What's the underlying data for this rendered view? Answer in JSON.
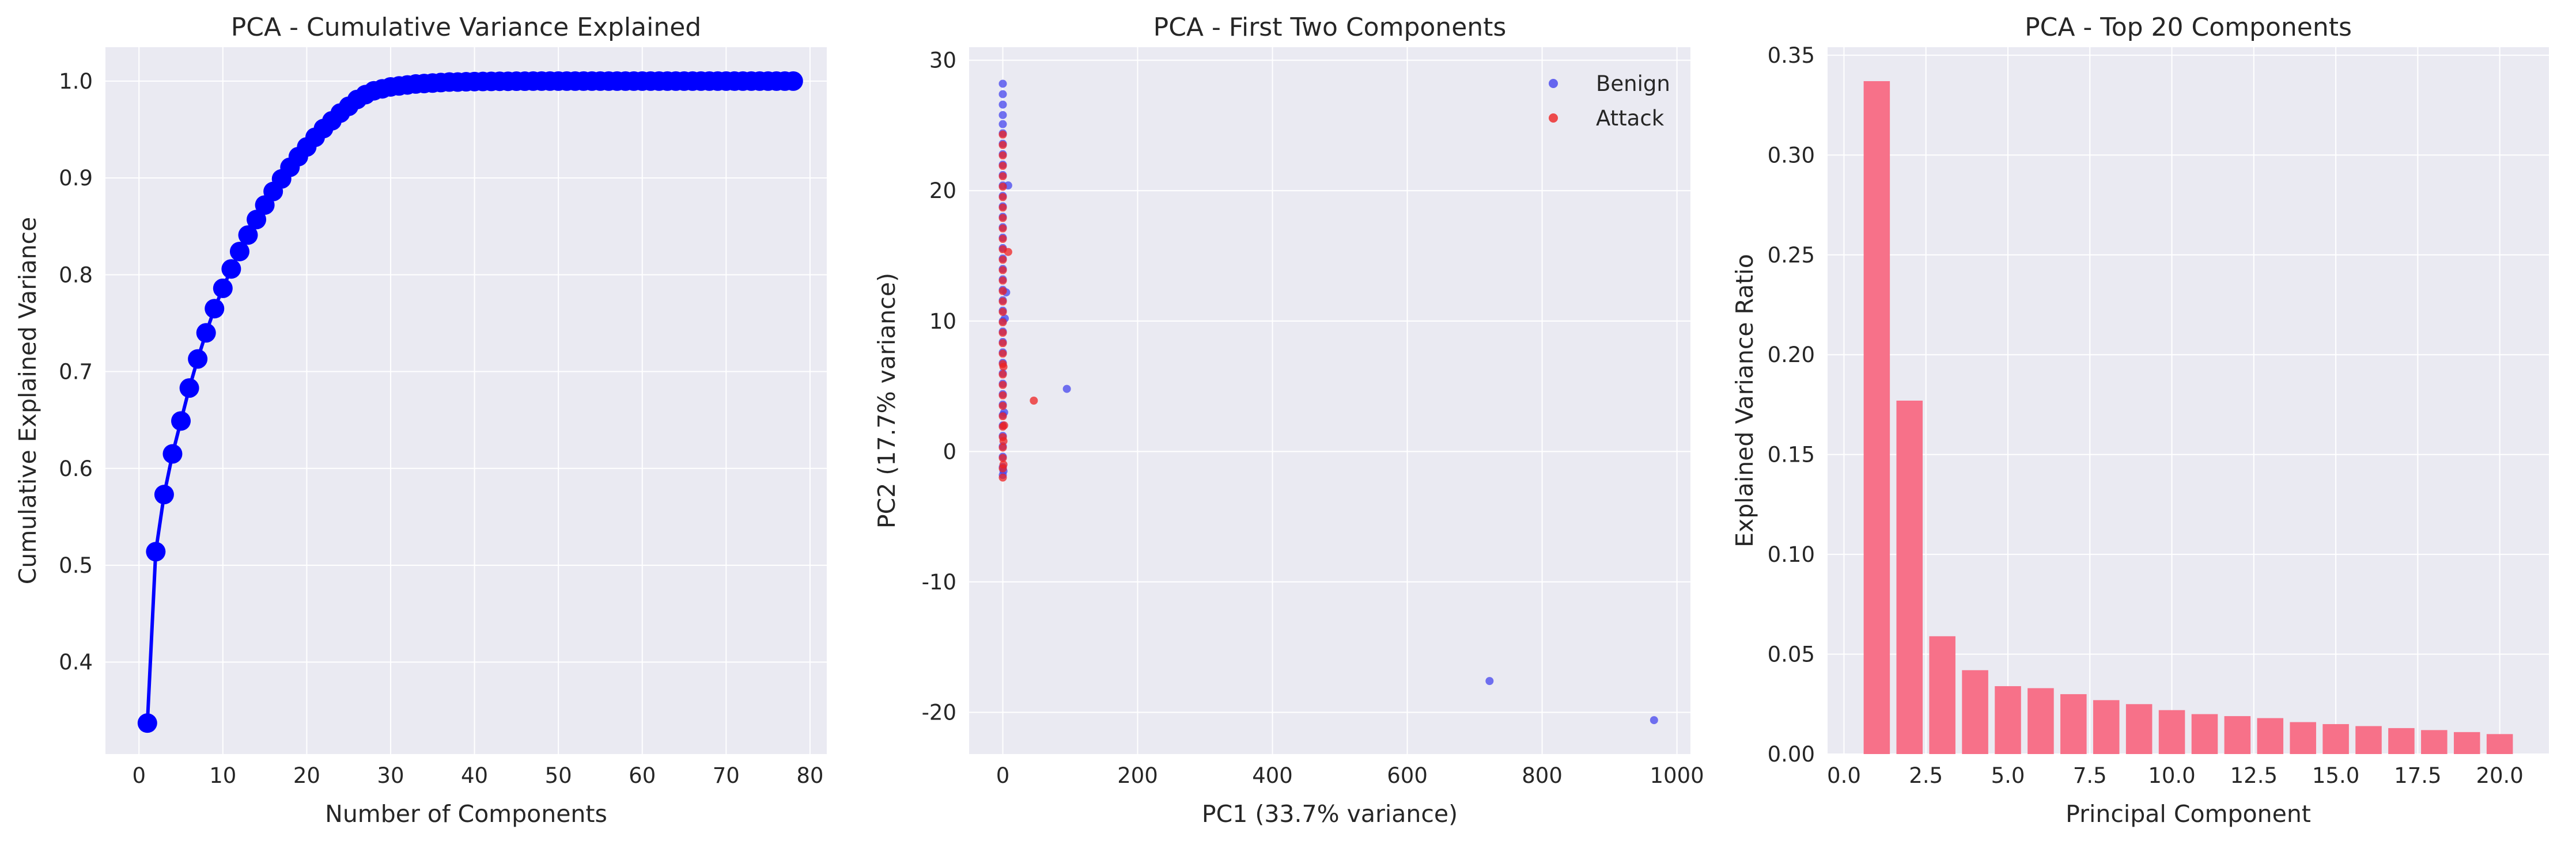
{
  "chart_data": [
    {
      "type": "line",
      "title": "PCA - Cumulative Variance Explained",
      "xlabel": "Number of Components",
      "ylabel": "Cumulative Explained Variance",
      "xlim": [
        -4,
        82
      ],
      "ylim": [
        0.305,
        1.035
      ],
      "xticks": [
        0,
        10,
        20,
        30,
        40,
        50,
        60,
        70,
        80
      ],
      "yticks": [
        0.4,
        0.5,
        0.6,
        0.7,
        0.8,
        0.9,
        1.0
      ],
      "ytick_labels": [
        "0.4",
        "0.5",
        "0.6",
        "0.7",
        "0.8",
        "0.9",
        "1.0"
      ],
      "grid": true,
      "color": "#0000FF",
      "x": [
        1,
        2,
        3,
        4,
        5,
        6,
        7,
        8,
        9,
        10,
        11,
        12,
        13,
        14,
        15,
        16,
        17,
        18,
        19,
        20,
        21,
        22,
        23,
        24,
        25,
        26,
        27,
        28,
        29,
        30,
        31,
        32,
        33,
        34,
        35,
        36,
        37,
        38,
        39,
        40,
        41,
        42,
        43,
        44,
        45,
        46,
        47,
        48,
        49,
        50,
        51,
        52,
        53,
        54,
        55,
        56,
        57,
        58,
        59,
        60,
        61,
        62,
        63,
        64,
        65,
        66,
        67,
        68,
        69,
        70,
        71,
        72,
        73,
        74,
        75,
        76,
        77,
        78
      ],
      "y": [
        0.337,
        0.514,
        0.573,
        0.615,
        0.649,
        0.683,
        0.713,
        0.74,
        0.765,
        0.786,
        0.806,
        0.824,
        0.841,
        0.857,
        0.872,
        0.886,
        0.899,
        0.911,
        0.922,
        0.932,
        0.942,
        0.951,
        0.959,
        0.967,
        0.974,
        0.981,
        0.986,
        0.99,
        0.992,
        0.994,
        0.995,
        0.996,
        0.997,
        0.9975,
        0.998,
        0.9985,
        0.999,
        0.999,
        0.9993,
        0.9995,
        0.9996,
        0.9997,
        0.9998,
        0.9998,
        0.9999,
        0.9999,
        1.0,
        1.0,
        1.0,
        1.0,
        1.0,
        1.0,
        1.0,
        1.0,
        1.0,
        1.0,
        1.0,
        1.0,
        1.0,
        1.0,
        1.0,
        1.0,
        1.0,
        1.0,
        1.0,
        1.0,
        1.0,
        1.0,
        1.0,
        1.0,
        1.0,
        1.0,
        1.0,
        1.0,
        1.0,
        1.0,
        1.0,
        1.0
      ]
    },
    {
      "type": "scatter",
      "title": "PCA - First Two Components",
      "xlabel": "PC1 (33.7% variance)",
      "ylabel": "PC2 (17.7% variance)",
      "xlim": [
        -50,
        1020
      ],
      "ylim": [
        -23.2,
        31
      ],
      "xticks": [
        0,
        200,
        400,
        600,
        800,
        1000
      ],
      "yticks": [
        -20,
        -10,
        0,
        10,
        20,
        30
      ],
      "grid": true,
      "legend": "top-right",
      "series": [
        {
          "name": "Benign",
          "color": "#4444EE",
          "points": [
            [
              0,
              28.2
            ],
            [
              0,
              27.4
            ],
            [
              0,
              26.6
            ],
            [
              0,
              25.8
            ],
            [
              0,
              25.1
            ],
            [
              0,
              24.4
            ],
            [
              0,
              23.6
            ],
            [
              0,
              22.8
            ],
            [
              0,
              22.0
            ],
            [
              0,
              21.2
            ],
            [
              0,
              20.4
            ],
            [
              0,
              19.6
            ],
            [
              0,
              18.8
            ],
            [
              0,
              18.0
            ],
            [
              0,
              17.2
            ],
            [
              0,
              16.4
            ],
            [
              0,
              15.6
            ],
            [
              0,
              14.8
            ],
            [
              0,
              14.0
            ],
            [
              0,
              13.2
            ],
            [
              0,
              12.4
            ],
            [
              0,
              11.6
            ],
            [
              0,
              10.8
            ],
            [
              0,
              10.0
            ],
            [
              0,
              9.2
            ],
            [
              0,
              8.4
            ],
            [
              0,
              7.6
            ],
            [
              0,
              6.8
            ],
            [
              0,
              6.0
            ],
            [
              0,
              5.2
            ],
            [
              0,
              4.4
            ],
            [
              0,
              3.6
            ],
            [
              0,
              2.8
            ],
            [
              0,
              2.0
            ],
            [
              0,
              1.2
            ],
            [
              0,
              0.4
            ],
            [
              0,
              -0.4
            ],
            [
              0,
              -1.2
            ],
            [
              0,
              -1.8
            ],
            [
              1,
              -1.5
            ],
            [
              2,
              3.0
            ],
            [
              3,
              10.2
            ],
            [
              5,
              12.2
            ],
            [
              8,
              20.4
            ],
            [
              95,
              4.8
            ],
            [
              722,
              -17.6
            ],
            [
              966,
              -20.6
            ]
          ]
        },
        {
          "name": "Attack",
          "color": "#EE2222",
          "points": [
            [
              0,
              24.3
            ],
            [
              0,
              23.5
            ],
            [
              0,
              22.7
            ],
            [
              0,
              21.9
            ],
            [
              0,
              21.1
            ],
            [
              0,
              20.3
            ],
            [
              0,
              19.5
            ],
            [
              0,
              18.7
            ],
            [
              0,
              17.9
            ],
            [
              0,
              17.1
            ],
            [
              0,
              16.3
            ],
            [
              0,
              15.5
            ],
            [
              0,
              14.7
            ],
            [
              0,
              13.9
            ],
            [
              0,
              13.1
            ],
            [
              0,
              12.3
            ],
            [
              0,
              11.5
            ],
            [
              0,
              10.7
            ],
            [
              0,
              9.9
            ],
            [
              0,
              9.1
            ],
            [
              0,
              8.3
            ],
            [
              0,
              7.5
            ],
            [
              0,
              6.7
            ],
            [
              0,
              5.9
            ],
            [
              0,
              5.1
            ],
            [
              0,
              4.3
            ],
            [
              0,
              3.5
            ],
            [
              0,
              2.7
            ],
            [
              0,
              1.9
            ],
            [
              0,
              1.1
            ],
            [
              0,
              0.3
            ],
            [
              0,
              -0.5
            ],
            [
              0,
              -1.3
            ],
            [
              0,
              -2.0
            ],
            [
              1,
              -1.0
            ],
            [
              1,
              0.8
            ],
            [
              1,
              6.5
            ],
            [
              2,
              2.0
            ],
            [
              8,
              15.3
            ],
            [
              46,
              3.9
            ]
          ]
        }
      ]
    },
    {
      "type": "bar",
      "title": "PCA - Top 20 Components",
      "xlabel": "Principal Component",
      "ylabel": "Explained Variance Ratio",
      "xlim": [
        -0.5,
        21.5
      ],
      "ylim": [
        0,
        0.354
      ],
      "xticks": [
        0.0,
        2.5,
        5.0,
        7.5,
        10.0,
        12.5,
        15.0,
        17.5,
        20.0
      ],
      "xtick_labels": [
        "0.0",
        "2.5",
        "5.0",
        "7.5",
        "10.0",
        "12.5",
        "15.0",
        "17.5",
        "20.0"
      ],
      "yticks": [
        0.0,
        0.05,
        0.1,
        0.15,
        0.2,
        0.25,
        0.3,
        0.35
      ],
      "ytick_labels": [
        "0.00",
        "0.05",
        "0.10",
        "0.15",
        "0.20",
        "0.25",
        "0.30",
        "0.35"
      ],
      "grid": true,
      "color": "#F77189",
      "categories": [
        1,
        2,
        3,
        4,
        5,
        6,
        7,
        8,
        9,
        10,
        11,
        12,
        13,
        14,
        15,
        16,
        17,
        18,
        19,
        20
      ],
      "values": [
        0.337,
        0.177,
        0.059,
        0.042,
        0.034,
        0.033,
        0.03,
        0.027,
        0.025,
        0.022,
        0.02,
        0.019,
        0.018,
        0.016,
        0.015,
        0.014,
        0.013,
        0.012,
        0.011,
        0.01
      ]
    }
  ]
}
